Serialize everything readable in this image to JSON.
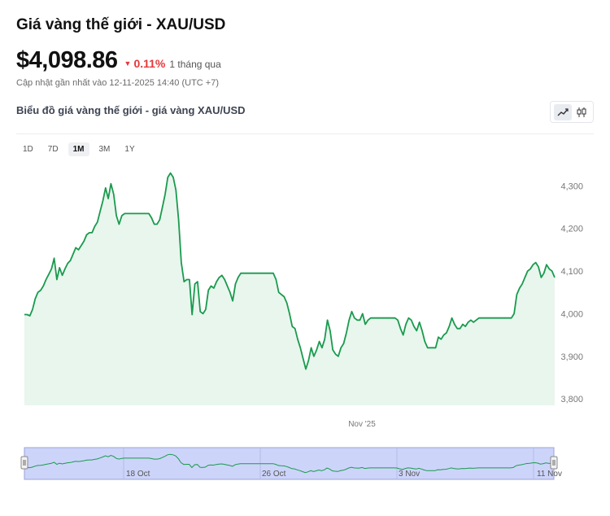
{
  "header": {
    "title": "Giá vàng thế giới - XAU/USD",
    "price": "$4,098.86",
    "change_icon": "triangle-down-icon",
    "change": "0.11%",
    "period": "1 tháng qua",
    "updated": "Cập nhật gần nhất vào 12-11-2025 14:40 (UTC +7)",
    "subtitle": "Biểu đồ giá vàng thế giới - giá vàng XAU/USD"
  },
  "ranges": [
    "1D",
    "7D",
    "1M",
    "3M",
    "1Y"
  ],
  "selected_range": "1M",
  "chart_type_buttons": [
    "line-chart-icon",
    "candlestick-icon"
  ],
  "colors": {
    "line": "#1a9a4e",
    "area": "#e8f6ed",
    "navigator": "#cdd4fa",
    "down": "#e5383b"
  },
  "chart_data": {
    "type": "area",
    "yticks": [
      3800,
      3900,
      4000,
      4100,
      4200,
      4300
    ],
    "ylim": [
      3785,
      4335
    ],
    "xticks": [
      "Nov '25"
    ],
    "navigator_labels": [
      "18 Oct",
      "26 Oct",
      "3 Nov",
      "11 Nov"
    ],
    "series": [
      {
        "values": [
          3998,
          3998,
          3995,
          4010,
          4035,
          4050,
          4055,
          4065,
          4080,
          4092,
          4105,
          4130,
          4080,
          4108,
          4090,
          4105,
          4118,
          4125,
          4140,
          4155,
          4150,
          4160,
          4170,
          4185,
          4190,
          4190,
          4205,
          4215,
          4240,
          4265,
          4295,
          4270,
          4305,
          4280,
          4230,
          4210,
          4230,
          4235,
          4235,
          4235,
          4235,
          4235,
          4235,
          4235,
          4235,
          4235,
          4235,
          4225,
          4210,
          4210,
          4220,
          4250,
          4280,
          4320,
          4330,
          4320,
          4290,
          4220,
          4120,
          4075,
          4080,
          4080,
          3998,
          4070,
          4075,
          4005,
          4000,
          4010,
          4055,
          4065,
          4060,
          4075,
          4085,
          4090,
          4080,
          4065,
          4050,
          4030,
          4070,
          4085,
          4095,
          4095,
          4095,
          4095,
          4095,
          4095,
          4095,
          4095,
          4095,
          4095,
          4095,
          4095,
          4095,
          4080,
          4050,
          4045,
          4040,
          4025,
          4000,
          3970,
          3965,
          3940,
          3920,
          3895,
          3870,
          3890,
          3920,
          3900,
          3915,
          3935,
          3920,
          3940,
          3985,
          3960,
          3915,
          3905,
          3900,
          3920,
          3930,
          3955,
          3985,
          4005,
          3990,
          3985,
          3985,
          4000,
          3975,
          3985,
          3990,
          3990,
          3990,
          3990,
          3990,
          3990,
          3990,
          3990,
          3990,
          3990,
          3985,
          3965,
          3950,
          3975,
          3990,
          3985,
          3970,
          3960,
          3980,
          3960,
          3935,
          3920,
          3920,
          3920,
          3920,
          3945,
          3940,
          3950,
          3955,
          3970,
          3990,
          3975,
          3965,
          3965,
          3975,
          3970,
          3980,
          3985,
          3980,
          3985,
          3990,
          3990,
          3990,
          3990,
          3990,
          3990,
          3990,
          3990,
          3990,
          3990,
          3990,
          3990,
          3990,
          4000,
          4045,
          4060,
          4070,
          4085,
          4100,
          4105,
          4115,
          4120,
          4110,
          4085,
          4095,
          4115,
          4105,
          4100,
          4085
        ]
      }
    ]
  }
}
